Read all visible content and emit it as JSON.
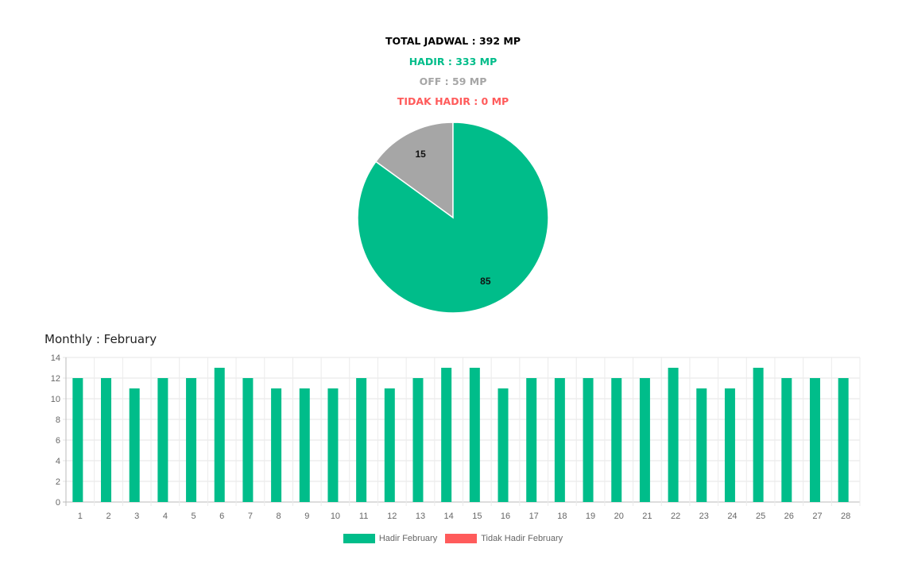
{
  "summary": {
    "total": "TOTAL JADWAL : 392 MP",
    "hadir": "HADIR : 333 MP",
    "off": "OFF : 59 MP",
    "tidak_hadir": "TIDAK HADIR : 0 MP"
  },
  "monthly_title": "Monthly : February",
  "colors": {
    "hadir": "#00bd8a",
    "off": "#a6a6a6",
    "tidak_hadir": "#ff5b5b"
  },
  "chart_data": [
    {
      "type": "pie",
      "labels": [
        "15",
        "85"
      ],
      "values": [
        15,
        85
      ],
      "colors": [
        "#a6a6a6",
        "#00bd8a"
      ]
    },
    {
      "type": "bar",
      "categories": [
        "1",
        "2",
        "3",
        "4",
        "5",
        "6",
        "7",
        "8",
        "9",
        "10",
        "11",
        "12",
        "13",
        "14",
        "15",
        "16",
        "17",
        "18",
        "19",
        "20",
        "21",
        "22",
        "23",
        "24",
        "25",
        "26",
        "27",
        "28"
      ],
      "series": [
        {
          "name": "Hadir February",
          "color": "#00bd8a",
          "values": [
            12,
            12,
            11,
            12,
            12,
            13,
            12,
            11,
            11,
            11,
            12,
            11,
            12,
            13,
            13,
            11,
            12,
            12,
            12,
            12,
            12,
            13,
            11,
            11,
            13,
            12,
            12,
            12
          ]
        },
        {
          "name": "Tidak Hadir February",
          "color": "#ff5b5b",
          "values": [
            0,
            0,
            0,
            0,
            0,
            0,
            0,
            0,
            0,
            0,
            0,
            0,
            0,
            0,
            0,
            0,
            0,
            0,
            0,
            0,
            0,
            0,
            0,
            0,
            0,
            0,
            0,
            0
          ]
        }
      ],
      "yticks": [
        "0",
        "2",
        "4",
        "6",
        "8",
        "10",
        "12",
        "14"
      ],
      "ylim": [
        0,
        14
      ],
      "grid": true,
      "legend": "bottom"
    }
  ]
}
